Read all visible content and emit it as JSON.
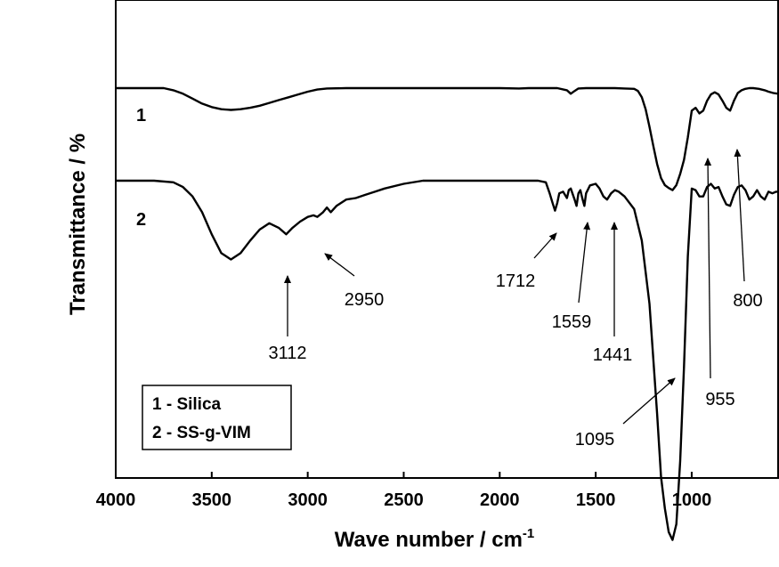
{
  "chart_data": {
    "type": "line",
    "xlabel": "Wave number / cm",
    "xlabel_superscript": "-1",
    "ylabel": "Transmittance / %",
    "xlim": [
      4000,
      550
    ],
    "x_reversed": true,
    "x_ticks": [
      4000,
      3500,
      3000,
      2500,
      2000,
      1500,
      1000
    ],
    "y_ticks_shown": false,
    "grid": false,
    "legend_position": "bottom-left",
    "legend": [
      "1 - Silica",
      "2 - SS-g-VIM"
    ],
    "series": [
      {
        "name": "1",
        "color": "#000000",
        "x": [
          4000,
          3800,
          3750,
          3700,
          3650,
          3600,
          3550,
          3500,
          3450,
          3400,
          3350,
          3300,
          3250,
          3200,
          3150,
          3100,
          3050,
          3000,
          2950,
          2900,
          2800,
          2600,
          2400,
          2200,
          2000,
          1900,
          1850,
          1800,
          1750,
          1700,
          1650,
          1630,
          1610,
          1590,
          1550,
          1500,
          1450,
          1400,
          1350,
          1300,
          1280,
          1260,
          1240,
          1220,
          1200,
          1180,
          1160,
          1140,
          1120,
          1100,
          1080,
          1060,
          1040,
          1020,
          1000,
          980,
          960,
          940,
          920,
          900,
          880,
          860,
          840,
          820,
          800,
          780,
          760,
          740,
          720,
          700,
          680,
          650,
          620,
          600,
          575,
          550
        ],
        "y": [
          100,
          100,
          100,
          97,
          92,
          85,
          78,
          73,
          70,
          69,
          70,
          72,
          75,
          79,
          83,
          87,
          91,
          95,
          98,
          99.5,
          100,
          100,
          100,
          100,
          100,
          99.5,
          100,
          100,
          100,
          100,
          97,
          92,
          96,
          99.5,
          100,
          100,
          100,
          100,
          99.5,
          99,
          96,
          87,
          70,
          45,
          18,
          -8,
          -28,
          -38,
          -42,
          -45,
          -38,
          -22,
          -2,
          30,
          68,
          72,
          64,
          68,
          82,
          91,
          94,
          91,
          82,
          72,
          68,
          82,
          93,
          97,
          99,
          100,
          100,
          99,
          97,
          95,
          93,
          92
        ]
      },
      {
        "name": "2",
        "color": "#000000",
        "x": [
          4000,
          3800,
          3700,
          3650,
          3600,
          3550,
          3500,
          3450,
          3400,
          3350,
          3300,
          3250,
          3200,
          3150,
          3112,
          3080,
          3040,
          3000,
          2970,
          2950,
          2920,
          2900,
          2880,
          2850,
          2800,
          2750,
          2700,
          2650,
          2600,
          2500,
          2400,
          2200,
          2000,
          1800,
          1760,
          1740,
          1725,
          1712,
          1700,
          1690,
          1670,
          1650,
          1640,
          1630,
          1610,
          1600,
          1590,
          1580,
          1570,
          1559,
          1550,
          1530,
          1500,
          1480,
          1460,
          1441,
          1420,
          1400,
          1380,
          1350,
          1300,
          1260,
          1220,
          1180,
          1160,
          1140,
          1120,
          1100,
          1080,
          1060,
          1040,
          1020,
          1000,
          980,
          960,
          940,
          920,
          900,
          880,
          860,
          840,
          820,
          800,
          780,
          760,
          740,
          720,
          700,
          680,
          660,
          640,
          620,
          600,
          580,
          560,
          550
        ],
        "y": [
          48,
          48,
          47,
          44,
          38,
          28,
          14,
          2,
          -2,
          2,
          10,
          17,
          21,
          18,
          14,
          18,
          22,
          25,
          26,
          25,
          28,
          31,
          28,
          32,
          36,
          37,
          39,
          41,
          43,
          46,
          48,
          48,
          48,
          48,
          47,
          40,
          34,
          29,
          34,
          40,
          41,
          37,
          42,
          43,
          36,
          32,
          40,
          42,
          37,
          32,
          40,
          45,
          46,
          43,
          38,
          36,
          40,
          42,
          41,
          38,
          30,
          10,
          -30,
          -100,
          -140,
          -160,
          -175,
          -180,
          -170,
          -130,
          -70,
          0,
          43,
          42,
          38,
          38,
          44,
          46,
          43,
          44,
          38,
          33,
          32,
          39,
          44,
          45,
          42,
          36,
          38,
          42,
          38,
          36,
          41,
          40,
          41,
          41
        ]
      }
    ],
    "curve_labels": [
      "1",
      "2"
    ],
    "annotations": [
      {
        "text": "3112",
        "x": 3112
      },
      {
        "text": "2950",
        "x": 2950
      },
      {
        "text": "1712",
        "x": 1712
      },
      {
        "text": "1559",
        "x": 1559
      },
      {
        "text": "1441",
        "x": 1441
      },
      {
        "text": "1095",
        "x": 1095
      },
      {
        "text": "955",
        "x": 955
      },
      {
        "text": "800",
        "x": 800
      }
    ]
  }
}
